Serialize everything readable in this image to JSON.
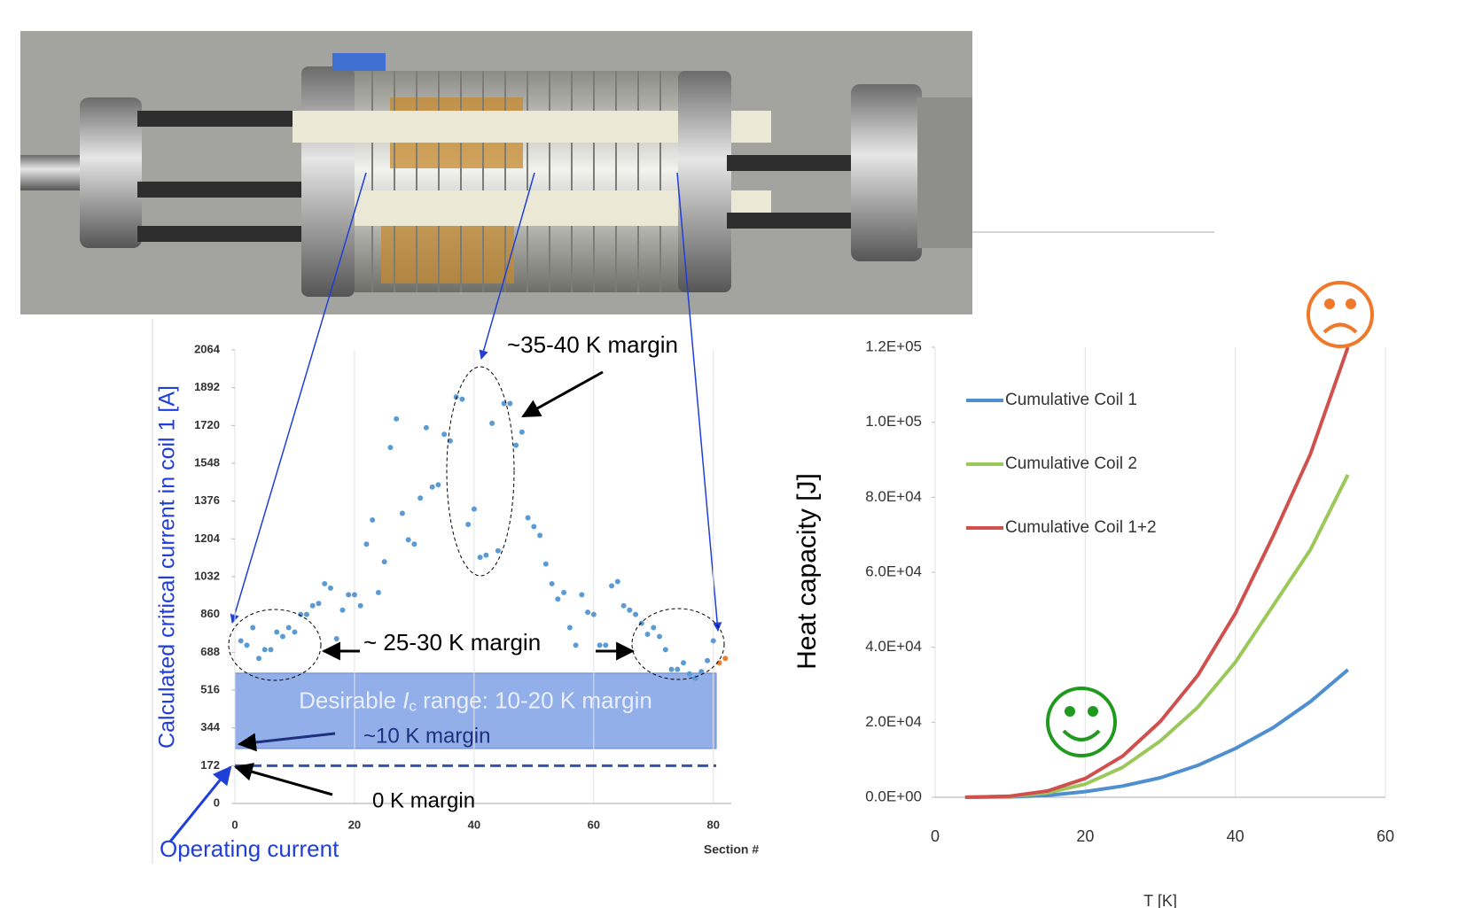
{
  "chart_data": [
    {
      "type": "scatter",
      "y_label": "Calculated critical current in coil 1 [A]",
      "x_label": "Section #",
      "x": [
        1,
        2,
        3,
        4,
        5,
        6,
        7,
        8,
        9,
        10,
        11,
        12,
        13,
        14,
        15,
        16,
        17,
        18,
        19,
        20,
        21,
        22,
        23,
        24,
        25,
        26,
        27,
        28,
        29,
        30,
        31,
        32,
        33,
        34,
        35,
        36,
        37,
        38,
        39,
        40,
        41,
        42,
        43,
        44,
        45,
        46,
        47,
        48,
        49,
        50,
        51,
        52,
        53,
        54,
        55,
        56,
        57,
        58,
        59,
        60,
        61,
        62,
        63,
        64,
        65,
        66,
        67,
        68,
        69,
        70,
        71,
        72,
        73,
        74,
        75,
        76,
        77,
        78,
        79,
        80
      ],
      "series": [
        {
          "color": "#5b9bd5",
          "values": [
            740,
            720,
            800,
            660,
            700,
            700,
            780,
            760,
            800,
            780,
            860,
            860,
            900,
            910,
            1000,
            980,
            750,
            880,
            950,
            950,
            900,
            1180,
            1290,
            960,
            1100,
            1620,
            1750,
            1320,
            1200,
            1180,
            1390,
            1710,
            1440,
            1450,
            1680,
            1650,
            1850,
            1840,
            1270,
            1340,
            1120,
            1130,
            1730,
            1150,
            1820,
            1820,
            1630,
            1690,
            1300,
            1260,
            1220,
            1090,
            1000,
            930,
            960,
            800,
            720,
            950,
            870,
            860,
            720,
            720,
            990,
            1010,
            900,
            880,
            860,
            820,
            770,
            800,
            760,
            700,
            610,
            610,
            640,
            590,
            570,
            600,
            650,
            740
          ]
        }
      ],
      "extra_points": {
        "color": "#ed7d31",
        "x": [
          81,
          82
        ],
        "values": [
          640,
          660
        ]
      },
      "xlim": [
        0,
        83
      ],
      "ylim": [
        0,
        2064
      ],
      "xticks": [
        0,
        20,
        40,
        60,
        80
      ],
      "yticks": [
        0,
        172,
        344,
        516,
        688,
        860,
        1032,
        1204,
        1376,
        1548,
        1720,
        1892,
        2064
      ],
      "grid": "x",
      "operating_current": 172,
      "desirable_band": [
        250,
        593
      ],
      "desirable_label": {
        "prefix": "Desirable ",
        "symbol": "I",
        "subscript": "c",
        "suffix": " range: 10-20 K margin"
      },
      "annotations": {
        "high": "~35-40 K margin",
        "ends": "~ 25-30 K margin",
        "ten": "~10 K margin",
        "zero": "0 K margin",
        "operating": "Operating current"
      }
    },
    {
      "type": "line",
      "y_label": "Heat capacity [J]",
      "x_label": "T [K]",
      "x": [
        4,
        10,
        15,
        20,
        25,
        30,
        35,
        40,
        45,
        50,
        55
      ],
      "series": [
        {
          "name": "Cumulative Coil 1",
          "color": "#4f8fcf",
          "values": [
            0,
            100,
            500,
            1500,
            3000,
            5200,
            8500,
            13000,
            18500,
            25500,
            34000
          ]
        },
        {
          "name": "Cumulative Coil 2",
          "color": "#9bc85a",
          "values": [
            0,
            200,
            1200,
            3500,
            8000,
            15000,
            24000,
            36000,
            51000,
            66000,
            86000
          ]
        },
        {
          "name": "Cumulative Coil 1+2",
          "color": "#d0504d",
          "values": [
            0,
            300,
            1700,
            5000,
            11000,
            20200,
            32500,
            49000,
            69500,
            91500,
            120000
          ]
        }
      ],
      "xlim": [
        0,
        60
      ],
      "ylim": [
        0,
        120000
      ],
      "xticks": [
        0,
        20,
        40,
        60
      ],
      "yticks": [
        {
          "value": 0,
          "label": "0.0E+00"
        },
        {
          "value": 20000,
          "label": "2.0E+04"
        },
        {
          "value": 40000,
          "label": "4.0E+04"
        },
        {
          "value": 60000,
          "label": "6.0E+04"
        },
        {
          "value": 80000,
          "label": "8.0E+04"
        },
        {
          "value": 100000,
          "label": "1.0E+05"
        },
        {
          "value": 120000,
          "label": "1.2E+05"
        }
      ],
      "grid": "x",
      "legend": "upper left"
    }
  ]
}
